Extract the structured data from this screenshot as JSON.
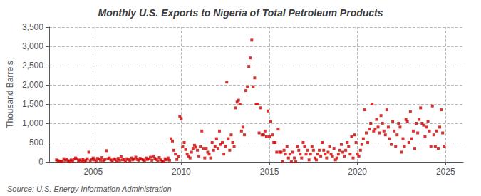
{
  "chart_data": {
    "type": "scatter",
    "title": "Monthly U.S. Exports to Nigeria of Total Petroleum Products",
    "ylabel": "Thousand Barrels",
    "annotation": "Source: U.S. Energy Information Administration",
    "color": "#cc0000",
    "marker": "square",
    "grid": true,
    "xlim": [
      2002.5,
      2026.0
    ],
    "xticks": [
      2005,
      2010,
      2015,
      2020,
      2025
    ],
    "ylim": [
      0,
      3500
    ],
    "yticks": [
      0,
      500,
      {
        "value": 1000,
        "label": "1,000"
      },
      {
        "value": 1500,
        "label": "1,500"
      },
      {
        "value": 2000,
        "label": "2,000"
      },
      {
        "value": 2500,
        "label": "2,500"
      },
      {
        "value": 3000,
        "label": "3,000"
      },
      {
        "value": 3500,
        "label": "3,500"
      }
    ],
    "x": [
      2002.917,
      2003.0,
      2003.083,
      2003.167,
      2003.25,
      2003.333,
      2003.417,
      2003.5,
      2003.583,
      2003.667,
      2003.75,
      2003.833,
      2003.917,
      2004.0,
      2004.083,
      2004.167,
      2004.25,
      2004.333,
      2004.417,
      2004.5,
      2004.583,
      2004.667,
      2004.75,
      2004.833,
      2004.917,
      2005.0,
      2005.083,
      2005.167,
      2005.25,
      2005.333,
      2005.417,
      2005.5,
      2005.583,
      2005.667,
      2005.75,
      2005.833,
      2005.917,
      2006.0,
      2006.083,
      2006.167,
      2006.25,
      2006.333,
      2006.417,
      2006.5,
      2006.583,
      2006.667,
      2006.75,
      2006.833,
      2006.917,
      2007.0,
      2007.083,
      2007.167,
      2007.25,
      2007.333,
      2007.417,
      2007.5,
      2007.583,
      2007.667,
      2007.75,
      2007.833,
      2007.917,
      2008.0,
      2008.083,
      2008.167,
      2008.25,
      2008.333,
      2008.417,
      2008.5,
      2008.583,
      2008.667,
      2008.75,
      2008.833,
      2008.917,
      2009.0,
      2009.083,
      2009.167,
      2009.25,
      2009.333,
      2009.417,
      2009.5,
      2009.583,
      2009.667,
      2009.75,
      2009.833,
      2009.917,
      2010.0,
      2010.083,
      2010.167,
      2010.25,
      2010.333,
      2010.417,
      2010.5,
      2010.583,
      2010.667,
      2010.75,
      2010.833,
      2010.917,
      2011.0,
      2011.083,
      2011.167,
      2011.25,
      2011.333,
      2011.417,
      2011.5,
      2011.583,
      2011.667,
      2011.75,
      2011.833,
      2011.917,
      2012.0,
      2012.083,
      2012.167,
      2012.25,
      2012.333,
      2012.417,
      2012.5,
      2012.583,
      2012.667,
      2012.75,
      2012.833,
      2012.917,
      2013.0,
      2013.083,
      2013.167,
      2013.25,
      2013.333,
      2013.417,
      2013.5,
      2013.583,
      2013.667,
      2013.75,
      2013.833,
      2013.917,
      2014.0,
      2014.083,
      2014.167,
      2014.25,
      2014.333,
      2014.417,
      2014.5,
      2014.583,
      2014.667,
      2014.75,
      2014.833,
      2014.917,
      2015.0,
      2015.083,
      2015.167,
      2015.25,
      2015.333,
      2015.417,
      2015.5,
      2015.583,
      2015.667,
      2015.75,
      2015.833,
      2015.917,
      2016.0,
      2016.083,
      2016.167,
      2016.25,
      2016.333,
      2016.417,
      2016.5,
      2016.583,
      2016.667,
      2016.75,
      2016.833,
      2016.917,
      2017.0,
      2017.083,
      2017.167,
      2017.25,
      2017.333,
      2017.417,
      2017.5,
      2017.583,
      2017.667,
      2017.75,
      2017.833,
      2017.917,
      2018.0,
      2018.083,
      2018.167,
      2018.25,
      2018.333,
      2018.417,
      2018.5,
      2018.583,
      2018.667,
      2018.75,
      2018.833,
      2018.917,
      2019.0,
      2019.083,
      2019.167,
      2019.25,
      2019.333,
      2019.417,
      2019.5,
      2019.583,
      2019.667,
      2019.75,
      2019.833,
      2019.917,
      2020.0,
      2020.083,
      2020.167,
      2020.25,
      2020.333,
      2020.417,
      2020.5,
      2020.583,
      2020.667,
      2020.75,
      2020.833,
      2020.917,
      2021.0,
      2021.083,
      2021.167,
      2021.25,
      2021.333,
      2021.417,
      2021.5,
      2021.583,
      2021.667,
      2021.75,
      2021.833,
      2021.917,
      2022.0,
      2022.083,
      2022.167,
      2022.25,
      2022.333,
      2022.417,
      2022.5,
      2022.583,
      2022.667,
      2022.75,
      2022.833,
      2022.917,
      2023.0,
      2023.083,
      2023.167,
      2023.25,
      2023.333,
      2023.417,
      2023.5,
      2023.583,
      2023.667,
      2023.75,
      2023.833,
      2023.917,
      2024.0,
      2024.083,
      2024.167,
      2024.25,
      2024.333,
      2024.417,
      2024.5,
      2024.583,
      2024.667,
      2024.75,
      2024.833,
      2024.917
    ],
    "values": [
      50,
      30,
      20,
      10,
      0,
      80,
      40,
      60,
      30,
      0,
      50,
      20,
      70,
      100,
      80,
      30,
      50,
      20,
      60,
      0,
      40,
      80,
      250,
      30,
      60,
      100,
      50,
      20,
      90,
      70,
      40,
      110,
      30,
      60,
      290,
      80,
      100,
      50,
      30,
      80,
      60,
      20,
      90,
      40,
      130,
      50,
      60,
      20,
      80,
      60,
      30,
      100,
      50,
      80,
      120,
      60,
      40,
      90,
      70,
      50,
      30,
      100,
      60,
      80,
      120,
      40,
      150,
      90,
      60,
      30,
      110,
      50,
      0,
      20,
      80,
      50,
      100,
      40,
      600,
      540,
      300,
      200,
      60,
      140,
      1180,
      1120,
      400,
      500,
      320,
      200,
      150,
      100,
      250,
      350,
      430,
      380,
      300,
      150,
      400,
      800,
      350,
      100,
      350,
      250,
      200,
      100,
      500,
      300,
      400,
      600,
      350,
      800,
      450,
      500,
      200,
      400,
      2070,
      600,
      300,
      700,
      500,
      400,
      1400,
      1550,
      1600,
      1500,
      800,
      900,
      700,
      1850,
      1950,
      2480,
      2700,
      3160,
      1950,
      2180,
      1500,
      1500,
      750,
      1400,
      700,
      700,
      800,
      650,
      1320,
      650,
      1050,
      700,
      500,
      500,
      250,
      850,
      250,
      250,
      0,
      300,
      200,
      400,
      100,
      200,
      0,
      250,
      100,
      0,
      400,
      300,
      200,
      100,
      500,
      400,
      200,
      300,
      50,
      200,
      400,
      300,
      100,
      50,
      200,
      300,
      150,
      500,
      300,
      200,
      100,
      250,
      400,
      200,
      150,
      350,
      50,
      100,
      200,
      300,
      450,
      250,
      150,
      300,
      500,
      400,
      200,
      650,
      100,
      700,
      500,
      200,
      150,
      300,
      450,
      600,
      1350,
      750,
      500,
      850,
      1000,
      1500,
      800,
      850,
      1100,
      900,
      750,
      1200,
      1000,
      800,
      700,
      1350,
      900,
      600,
      450,
      1050,
      800,
      400,
      700,
      1000,
      900,
      250,
      600,
      400,
      1100,
      1050,
      500,
      1300,
      600,
      800,
      350,
      1000,
      750,
      1100,
      1400,
      1000,
      950,
      650,
      900,
      1050,
      800,
      400,
      1450,
      700,
      400,
      800,
      350,
      900,
      1350,
      750,
      400
    ]
  }
}
